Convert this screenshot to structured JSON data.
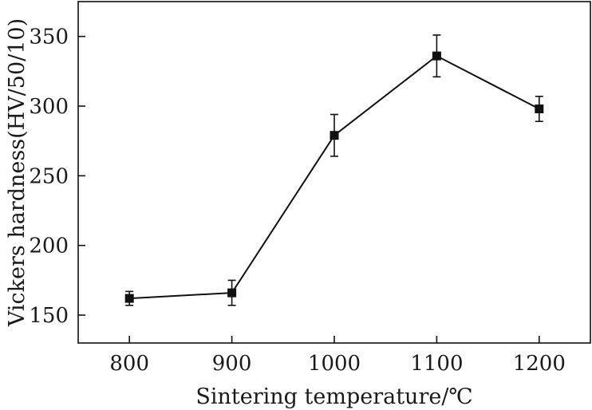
{
  "chart_data": {
    "type": "line",
    "title": "",
    "xlabel": "Sintering temperature/℃",
    "ylabel": "Vickers hardness(HV/50/10)",
    "x": [
      800,
      900,
      1000,
      1100,
      1200
    ],
    "x_ticks": [
      "800",
      "900",
      "1000",
      "1100",
      "1200"
    ],
    "y_ticks": [
      "150",
      "200",
      "250",
      "300",
      "350"
    ],
    "xlim": [
      750,
      1250
    ],
    "ylim": [
      130,
      375
    ],
    "grid": false,
    "legend": "none",
    "series": [
      {
        "values": [
          162,
          166,
          279,
          336,
          298
        ],
        "error": [
          5,
          9,
          15,
          15,
          9
        ],
        "marker": "square",
        "color": "#111111"
      }
    ]
  }
}
